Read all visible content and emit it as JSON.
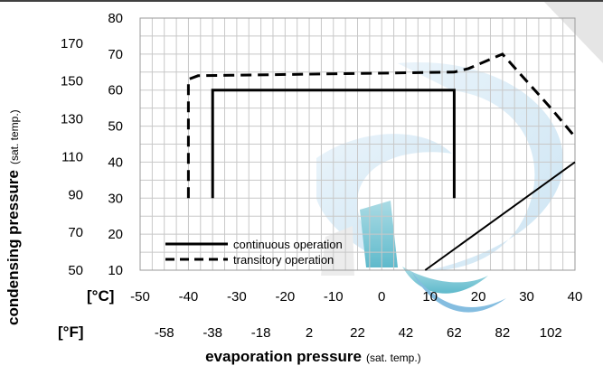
{
  "chart_data": {
    "type": "line",
    "title": "",
    "xlabel": "evaporation pressure",
    "xlabel_note": "(sat. temp.)",
    "ylabel": "condensing pressure",
    "ylabel_note": "(sat. temp.)",
    "x_unit_label": "[°C]",
    "x2_unit_label": "[°F]",
    "xlim": [
      -50,
      40
    ],
    "ylim": [
      10,
      80
    ],
    "x_ticks": [
      -50,
      -40,
      -30,
      -20,
      -10,
      0,
      10,
      20,
      30,
      40
    ],
    "x2_ticks": [
      "-58",
      "-38",
      "-18",
      "2",
      "22",
      "42",
      "62",
      "82",
      "102"
    ],
    "y_ticks": [
      10,
      20,
      30,
      40,
      50,
      60,
      70,
      80
    ],
    "y2_ticks": [
      "50",
      "70",
      "90",
      "110",
      "130",
      "150",
      "170"
    ],
    "grid": true,
    "legend_position": "bottom-left",
    "series": [
      {
        "name": "continuous operation",
        "style": "solid",
        "points": [
          [
            -35,
            30
          ],
          [
            -35,
            60
          ],
          [
            15,
            60
          ],
          [
            15,
            30
          ]
        ]
      },
      {
        "name": "transitory operation",
        "style": "dashed",
        "points": [
          [
            -40,
            30
          ],
          [
            -40,
            63
          ],
          [
            -38,
            64
          ],
          [
            15,
            65
          ],
          [
            18,
            66
          ],
          [
            25,
            70
          ],
          [
            35,
            55
          ],
          [
            40,
            47
          ]
        ]
      },
      {
        "style": "thin",
        "points": [
          [
            9,
            10
          ],
          [
            40,
            40
          ]
        ]
      }
    ]
  },
  "colors": {
    "line": "#000000",
    "grid": "#c8c8c8",
    "watermark_blue": "#cfe6f4",
    "watermark_teal": "#4fb6c9",
    "watermark_dark": "#2c6fb0",
    "watermark_grey": "#dcdcdc"
  }
}
